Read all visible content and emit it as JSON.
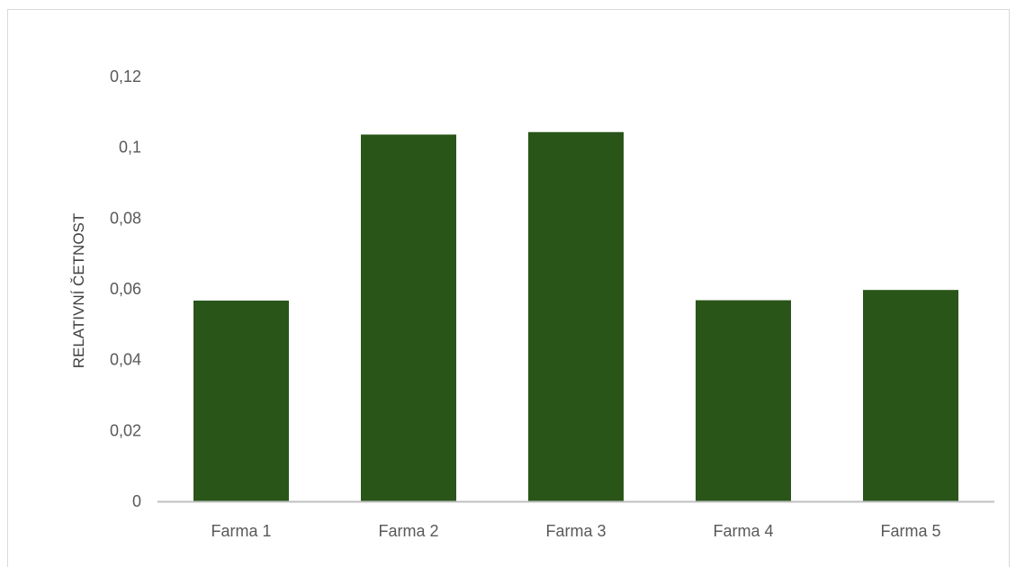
{
  "chart_data": {
    "type": "bar",
    "title": "",
    "xlabel": "",
    "ylabel": "RELATIVNÍ ČETNOST",
    "categories": [
      "Farma 1",
      "Farma 2",
      "Farma 3",
      "Farma 4",
      "Farma 5"
    ],
    "values": [
      0.0567,
      0.1036,
      0.1043,
      0.0568,
      0.0597
    ],
    "ylim": [
      0,
      0.12
    ],
    "yticks": [
      0,
      0.02,
      0.04,
      0.06,
      0.08,
      0.1,
      0.12
    ],
    "ytick_labels": [
      "0",
      "0,02",
      "0,04",
      "0,06",
      "0,08",
      "0,1",
      "0,12"
    ],
    "grid": false,
    "legend": "none",
    "bar_color": "#2a5519",
    "axis_color": "#bfbfbf"
  }
}
